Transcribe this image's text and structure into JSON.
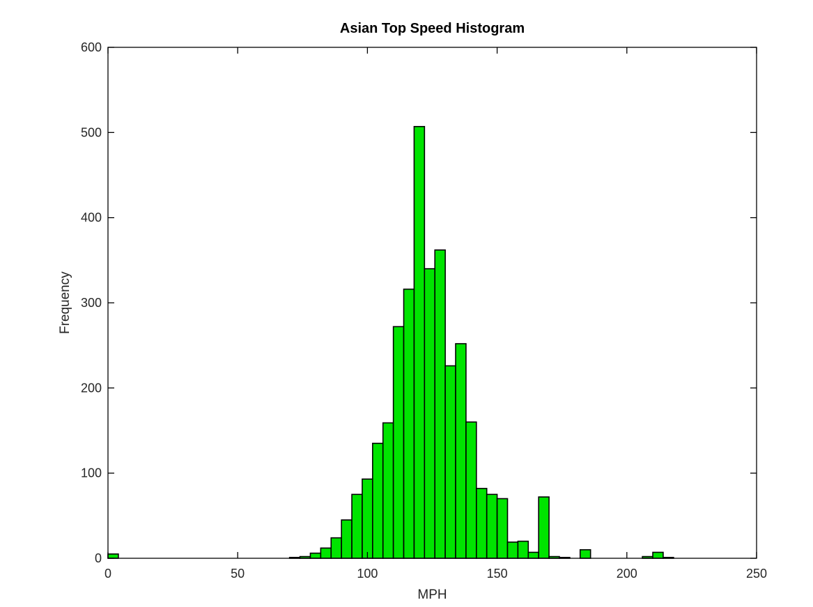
{
  "chart_data": {
    "type": "bar",
    "subtype": "histogram",
    "title": "Asian Top Speed Histogram",
    "xlabel": "MPH",
    "ylabel": "Frequency",
    "xlim": [
      0,
      250
    ],
    "ylim": [
      0,
      600
    ],
    "xticks": [
      0,
      50,
      100,
      150,
      200,
      250
    ],
    "yticks": [
      0,
      100,
      200,
      300,
      400,
      500,
      600
    ],
    "grid": false,
    "bar_color": "#00e400",
    "edge_color": "#000000",
    "bin_width": 4,
    "bins": [
      {
        "x0": 0,
        "x1": 4,
        "count": 5
      },
      {
        "x0": 70,
        "x1": 74,
        "count": 1
      },
      {
        "x0": 74,
        "x1": 78,
        "count": 2
      },
      {
        "x0": 78,
        "x1": 82,
        "count": 6
      },
      {
        "x0": 82,
        "x1": 86,
        "count": 12
      },
      {
        "x0": 86,
        "x1": 90,
        "count": 24
      },
      {
        "x0": 90,
        "x1": 94,
        "count": 45
      },
      {
        "x0": 94,
        "x1": 98,
        "count": 75
      },
      {
        "x0": 98,
        "x1": 102,
        "count": 93
      },
      {
        "x0": 102,
        "x1": 106,
        "count": 135
      },
      {
        "x0": 106,
        "x1": 110,
        "count": 159
      },
      {
        "x0": 110,
        "x1": 114,
        "count": 272
      },
      {
        "x0": 114,
        "x1": 118,
        "count": 316
      },
      {
        "x0": 118,
        "x1": 122,
        "count": 507
      },
      {
        "x0": 122,
        "x1": 126,
        "count": 340
      },
      {
        "x0": 126,
        "x1": 130,
        "count": 362
      },
      {
        "x0": 130,
        "x1": 134,
        "count": 226
      },
      {
        "x0": 134,
        "x1": 138,
        "count": 252
      },
      {
        "x0": 138,
        "x1": 142,
        "count": 160
      },
      {
        "x0": 142,
        "x1": 146,
        "count": 82
      },
      {
        "x0": 146,
        "x1": 150,
        "count": 75
      },
      {
        "x0": 150,
        "x1": 154,
        "count": 70
      },
      {
        "x0": 154,
        "x1": 158,
        "count": 19
      },
      {
        "x0": 158,
        "x1": 162,
        "count": 20
      },
      {
        "x0": 162,
        "x1": 166,
        "count": 7
      },
      {
        "x0": 166,
        "x1": 170,
        "count": 72
      },
      {
        "x0": 170,
        "x1": 174,
        "count": 2
      },
      {
        "x0": 174,
        "x1": 178,
        "count": 1
      },
      {
        "x0": 182,
        "x1": 186,
        "count": 10
      },
      {
        "x0": 206,
        "x1": 210,
        "count": 2
      },
      {
        "x0": 210,
        "x1": 214,
        "count": 7
      },
      {
        "x0": 214,
        "x1": 218,
        "count": 1
      }
    ]
  }
}
